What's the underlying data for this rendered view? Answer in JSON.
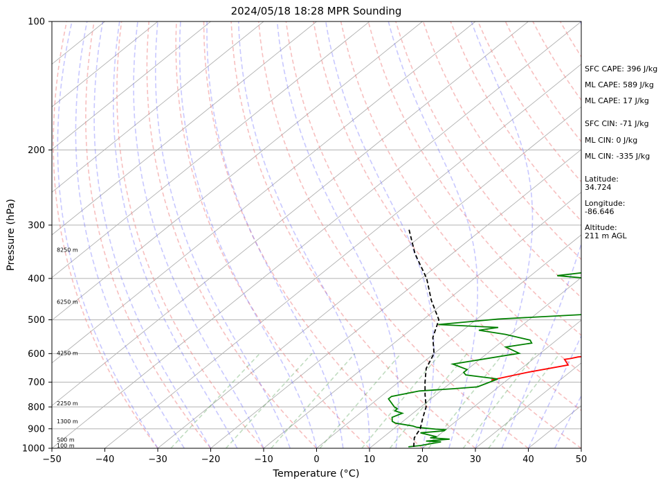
{
  "chart_data": {
    "type": "line",
    "title": "2024/05/18 18:28 MPR Sounding",
    "xlabel": "Temperature (°C)",
    "ylabel": "Pressure (hPa)",
    "xlim": [
      -50,
      50
    ],
    "ylim": [
      1000,
      100
    ],
    "y_scale": "log",
    "grid": true,
    "x_ticks": [
      "−50",
      "−40",
      "−30",
      "−20",
      "−10",
      "0",
      "10",
      "20",
      "30",
      "40",
      "50"
    ],
    "y_ticks": [
      "100",
      "200",
      "300",
      "400",
      "500",
      "600",
      "700",
      "800",
      "900",
      "1000"
    ],
    "altitude_labels": [
      {
        "p": 985,
        "text": "100 m"
      },
      {
        "p": 955,
        "text": "500 m"
      },
      {
        "p": 865,
        "text": "1300 m"
      },
      {
        "p": 785,
        "text": "2250 m"
      },
      {
        "p": 598,
        "text": "4250 m"
      },
      {
        "p": 454,
        "text": "6250 m"
      },
      {
        "p": 343,
        "text": "8250 m"
      }
    ],
    "series": [
      {
        "role": "temperature",
        "color": "#ff0000",
        "points": [
          [
            59,
            305
          ],
          [
            47,
            328
          ],
          [
            49,
            337
          ],
          [
            43,
            354
          ],
          [
            41,
            364
          ],
          [
            40,
            369
          ],
          [
            36,
            378
          ],
          [
            37,
            392
          ],
          [
            36,
            402
          ],
          [
            36,
            410
          ],
          [
            37,
            417
          ],
          [
            38,
            432
          ],
          [
            39,
            467
          ],
          [
            38,
            476
          ],
          [
            38,
            500
          ],
          [
            35,
            516
          ],
          [
            40,
            532
          ],
          [
            39,
            540
          ],
          [
            35,
            560
          ],
          [
            34,
            580
          ],
          [
            34,
            600
          ],
          [
            30,
            607
          ],
          [
            28,
            611
          ],
          [
            27,
            616
          ],
          [
            26,
            619
          ],
          [
            28,
            638
          ],
          [
            22,
            664
          ],
          [
            17,
            692
          ]
        ]
      },
      {
        "role": "dewpoint",
        "color": "#008000",
        "points": [
          [
            17,
            992
          ],
          [
            19,
            985
          ],
          [
            22,
            966
          ],
          [
            19,
            962
          ],
          [
            23,
            952
          ],
          [
            19,
            945
          ],
          [
            20,
            940
          ],
          [
            16,
            920
          ],
          [
            20,
            910
          ],
          [
            20,
            905
          ],
          [
            18,
            902
          ],
          [
            14,
            893
          ],
          [
            13,
            887
          ],
          [
            9,
            873
          ],
          [
            8,
            865
          ],
          [
            7,
            846
          ],
          [
            8,
            828
          ],
          [
            6,
            817
          ],
          [
            6,
            808
          ],
          [
            5,
            800
          ],
          [
            2,
            766
          ],
          [
            2,
            756
          ],
          [
            6,
            734
          ],
          [
            12,
            725
          ],
          [
            16,
            718
          ],
          [
            18,
            688
          ],
          [
            11,
            673
          ],
          [
            10,
            664
          ],
          [
            10,
            654
          ],
          [
            6,
            635
          ],
          [
            16,
            599
          ],
          [
            12,
            579
          ],
          [
            16,
            567
          ],
          [
            15,
            558
          ],
          [
            9,
            541
          ],
          [
            3,
            529
          ],
          [
            6,
            521
          ],
          [
            -6,
            513
          ],
          [
            4,
            498
          ],
          [
            19,
            486
          ],
          [
            19,
            471
          ],
          [
            20,
            458
          ],
          [
            23,
            445
          ],
          [
            19,
            419
          ],
          [
            18,
            406
          ],
          [
            5,
            394
          ],
          [
            13,
            382
          ],
          [
            18,
            378
          ],
          [
            19,
            365
          ],
          [
            21,
            355
          ],
          [
            10,
            339
          ],
          [
            8,
            331
          ],
          [
            15,
            320
          ],
          [
            12,
            318
          ],
          [
            17,
            303
          ]
        ]
      },
      {
        "role": "parcel",
        "color": "#000000",
        "points": [
          [
            18,
            992
          ],
          [
            16,
            945
          ],
          [
            15,
            900
          ],
          [
            13,
            850
          ],
          [
            11,
            800
          ],
          [
            8,
            750
          ],
          [
            5,
            700
          ],
          [
            2,
            650
          ],
          [
            0,
            600
          ],
          [
            -4,
            550
          ],
          [
            -7,
            500
          ],
          [
            -13,
            450
          ],
          [
            -19,
            400
          ],
          [
            -27,
            350
          ],
          [
            -34,
            306
          ]
        ]
      }
    ]
  },
  "side_text": [
    "SFC CAPE: 396 J/kg",
    "ML CAPE: 589 J/kg",
    "ML CAPE: 17 J/kg",
    "SFC CIN: -71 J/kg",
    "ML CIN: 0 J/kg",
    "ML CIN: -335 J/kg",
    "Latitude:",
    "34.724",
    "Longitude:",
    "-86.646",
    "Altitude:",
    "211 m AGL"
  ]
}
